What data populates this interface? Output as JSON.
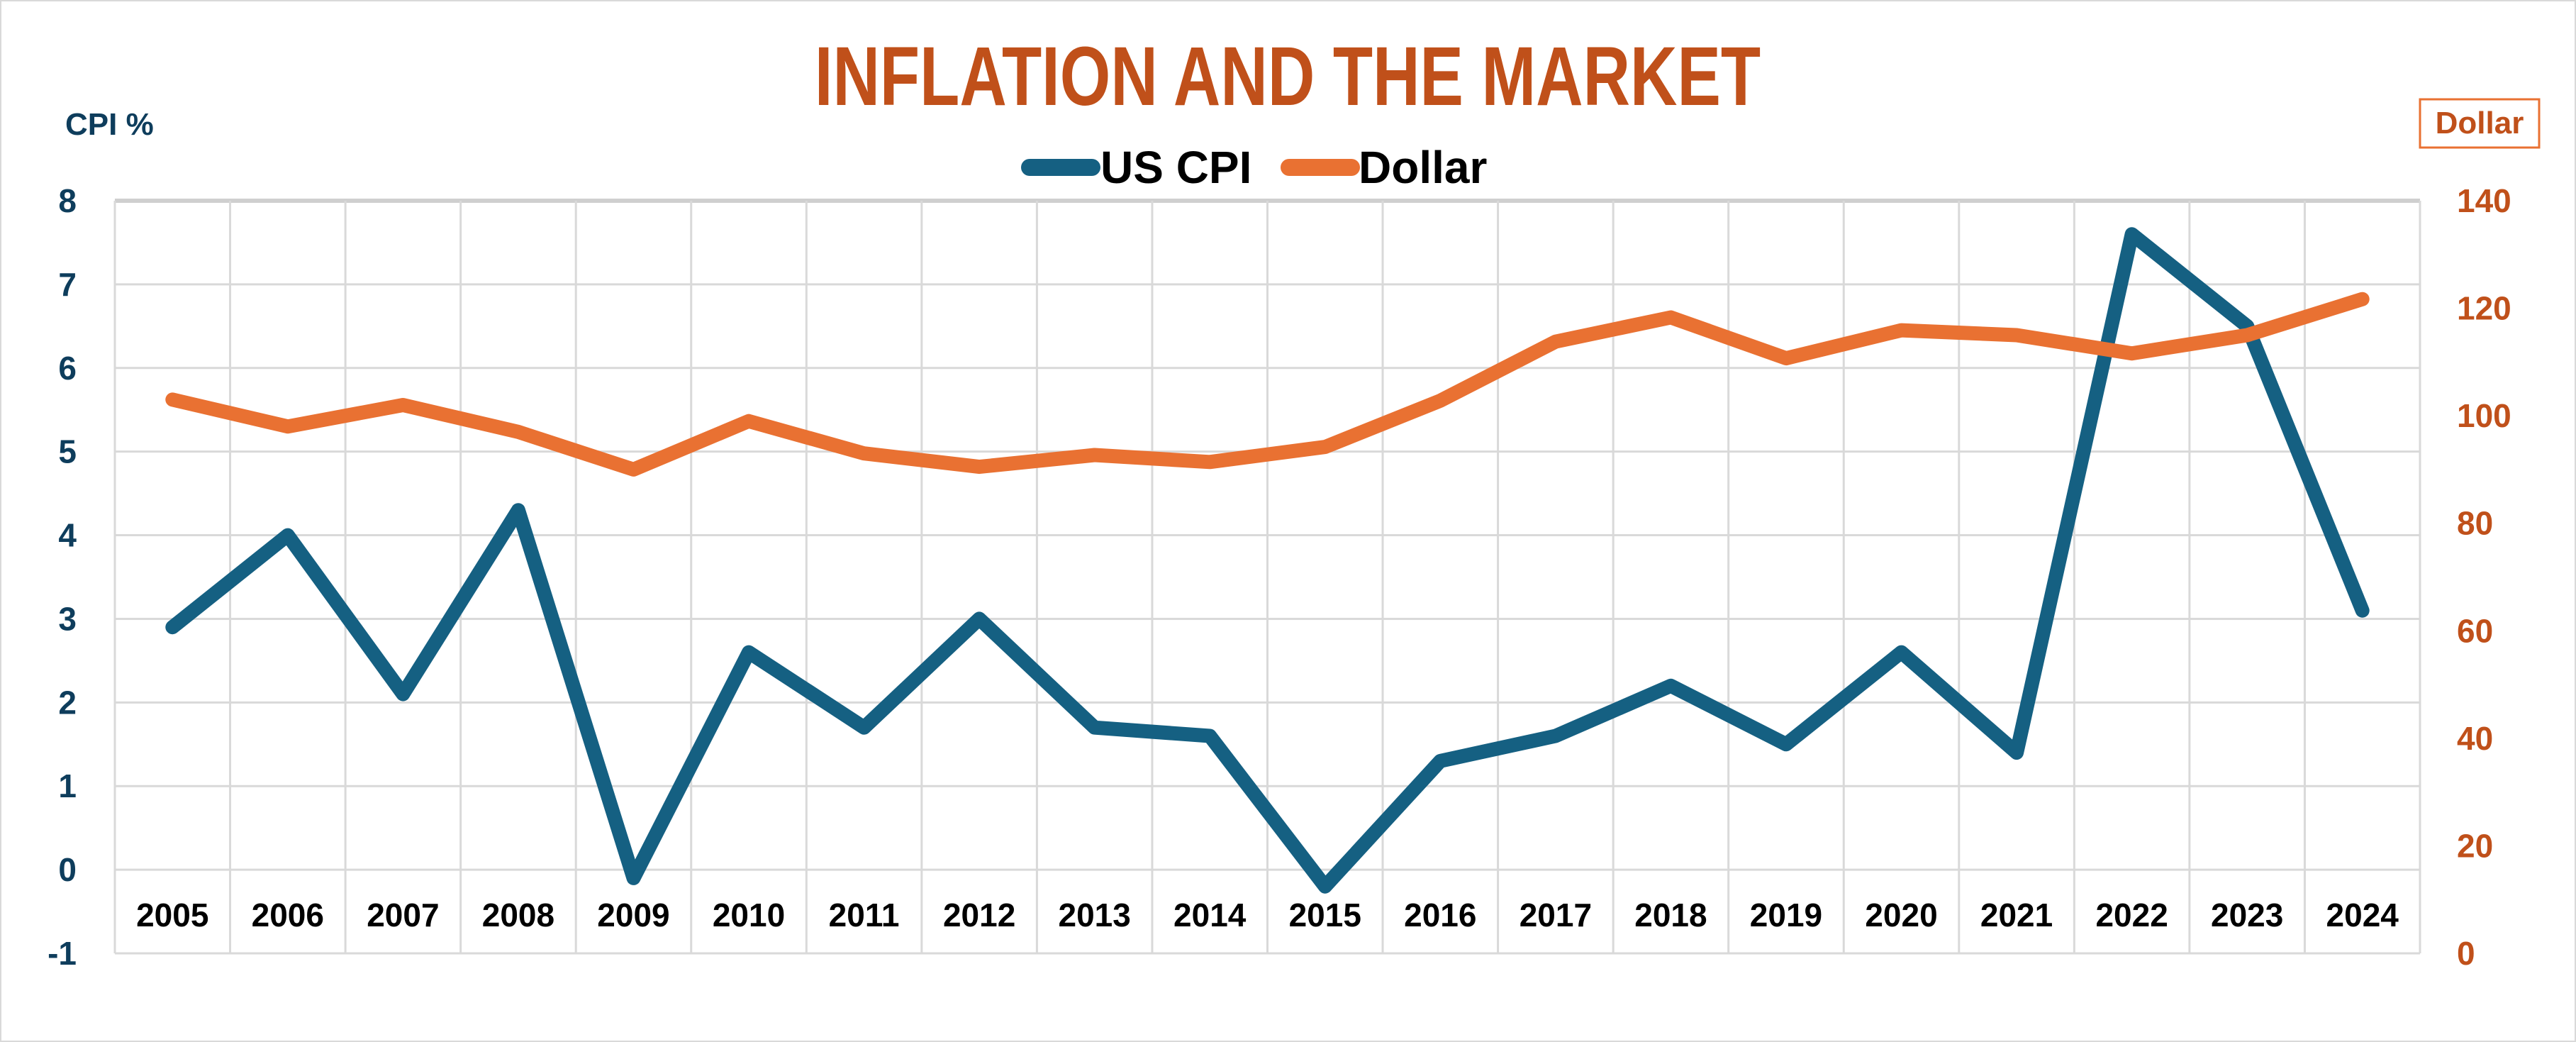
{
  "chart_data": {
    "type": "line",
    "title": "INFLATION AND THE MARKET",
    "ylabel": "CPI %",
    "y2label": "Dollar",
    "categories": [
      "2005",
      "2006",
      "2007",
      "2008",
      "2009",
      "2010",
      "2011",
      "2012",
      "2013",
      "2014",
      "2015",
      "2016",
      "2017",
      "2018",
      "2019",
      "2020",
      "2021",
      "2022",
      "2023",
      "2024"
    ],
    "ylim": [
      -1,
      8
    ],
    "y_ticks": [
      "-1",
      "0",
      "1",
      "2",
      "3",
      "4",
      "5",
      "6",
      "7",
      "8"
    ],
    "y2lim": [
      0,
      140
    ],
    "y2_ticks": [
      "0",
      "20",
      "40",
      "60",
      "80",
      "100",
      "120",
      "140"
    ],
    "grid": true,
    "legend_placement": "top",
    "series": [
      {
        "name": "US CPI",
        "axis": "left",
        "color": "#156082",
        "values": [
          2.9,
          4.0,
          2.1,
          4.3,
          -0.1,
          2.6,
          1.7,
          3.0,
          1.7,
          1.6,
          -0.2,
          1.3,
          1.6,
          2.2,
          1.5,
          2.6,
          1.4,
          7.6,
          6.5,
          3.1
        ]
      },
      {
        "name": "Dollar",
        "axis": "right",
        "color": "#E97132",
        "values": [
          103,
          98,
          102,
          97,
          90,
          99,
          93,
          90.5,
          92.7,
          91.4,
          94.2,
          102.8,
          113.8,
          118.3,
          110.7,
          115.9,
          115,
          111.6,
          115,
          121.7
        ]
      }
    ],
    "colors": {
      "title": "#C0501A",
      "left_axis": "#0E3D5C",
      "right_axis": "#C0501A"
    }
  }
}
